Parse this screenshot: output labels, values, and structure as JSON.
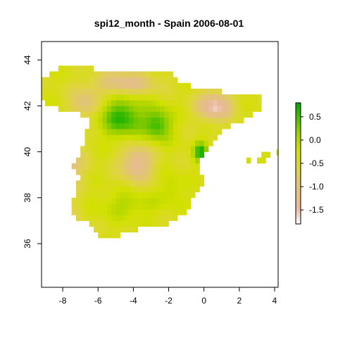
{
  "title": "spi12_month - Spain 2006-08-01",
  "map": {
    "x_range": [
      -9.2,
      4.2
    ],
    "y_range": [
      34.1,
      44.8
    ],
    "x_ticks": [
      -8,
      -6,
      -4,
      -2,
      0,
      2,
      4
    ],
    "y_ticks": [
      36,
      38,
      40,
      42,
      44
    ],
    "x_tick_labels": [
      "-8",
      "-6",
      "-4",
      "-2",
      "0",
      "2",
      "4"
    ],
    "y_tick_labels": [
      "36",
      "38",
      "40",
      "42",
      "44"
    ],
    "cell_size_deg": 0.25,
    "value_range": [
      -1.8,
      0.8
    ]
  },
  "legend": {
    "ticks": [
      0.5,
      0.0,
      -0.5,
      -1.0,
      -1.5
    ],
    "tick_labels": [
      "0.5",
      "0.0",
      "-0.5",
      "-1.0",
      "-1.5"
    ],
    "colors": [
      "#ffffff",
      "#e7a98a",
      "#e2c267",
      "#dcdc14",
      "#9fcf00",
      "#3ebf00",
      "#00a600"
    ]
  }
}
